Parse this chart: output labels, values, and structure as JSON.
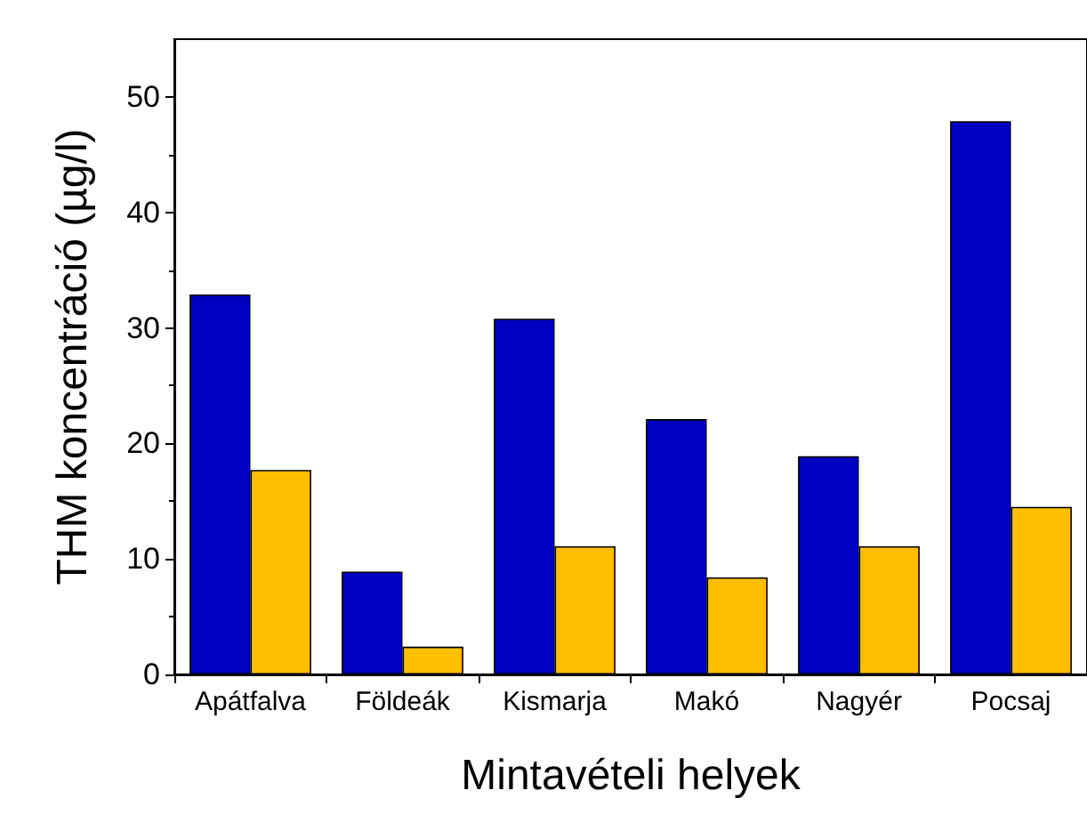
{
  "chart_data": {
    "type": "bar",
    "xlabel": "Mintavételi helyek",
    "ylabel": "THM koncentráció (µg/l)",
    "categories": [
      "Apátfalva",
      "Földeák",
      "Kismarja",
      "Makó",
      "Nagyér",
      "Pocsaj"
    ],
    "series": [
      {
        "color": "#0000c0",
        "values": [
          32.9,
          8.9,
          30.8,
          22.1,
          18.9,
          47.9
        ]
      },
      {
        "color": "#ffbf00",
        "values": [
          17.7,
          2.4,
          11.1,
          8.4,
          11.1,
          14.5
        ]
      }
    ],
    "ylim": [
      0,
      55
    ],
    "yticks": [
      0,
      10,
      20,
      30,
      40,
      50
    ],
    "grid": false
  }
}
